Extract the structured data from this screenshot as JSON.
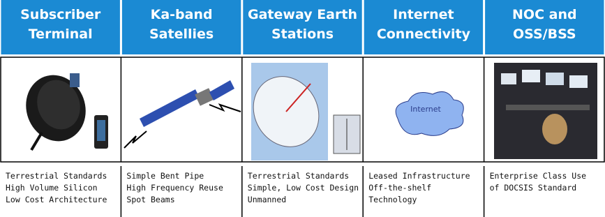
{
  "columns": [
    {
      "title": [
        "Subscriber",
        "Terminal"
      ],
      "items": [
        "Terrestrial Standards",
        "High Volume Silicon",
        "Low Cost Architecture"
      ]
    },
    {
      "title": [
        "Ka-band",
        "Satellies"
      ],
      "items": [
        "Simple Bent Pipe",
        "High Frequency Reuse",
        "Spot Beams"
      ]
    },
    {
      "title": [
        "Gateway Earth",
        "Stations"
      ],
      "items": [
        "Terrestrial Standards",
        "Simple, Low Cost Design",
        "Unmanned"
      ]
    },
    {
      "title": [
        "Internet",
        "Connectivity"
      ],
      "items": [
        "Leased Infrastructure",
        "Off-the-shelf",
        "Technology"
      ],
      "image_label": "Internet"
    },
    {
      "title": [
        "NOC and",
        "OSS/BSS"
      ],
      "items": [
        "Enterprise Class Use",
        "of DOCSIS Standard"
      ]
    }
  ]
}
